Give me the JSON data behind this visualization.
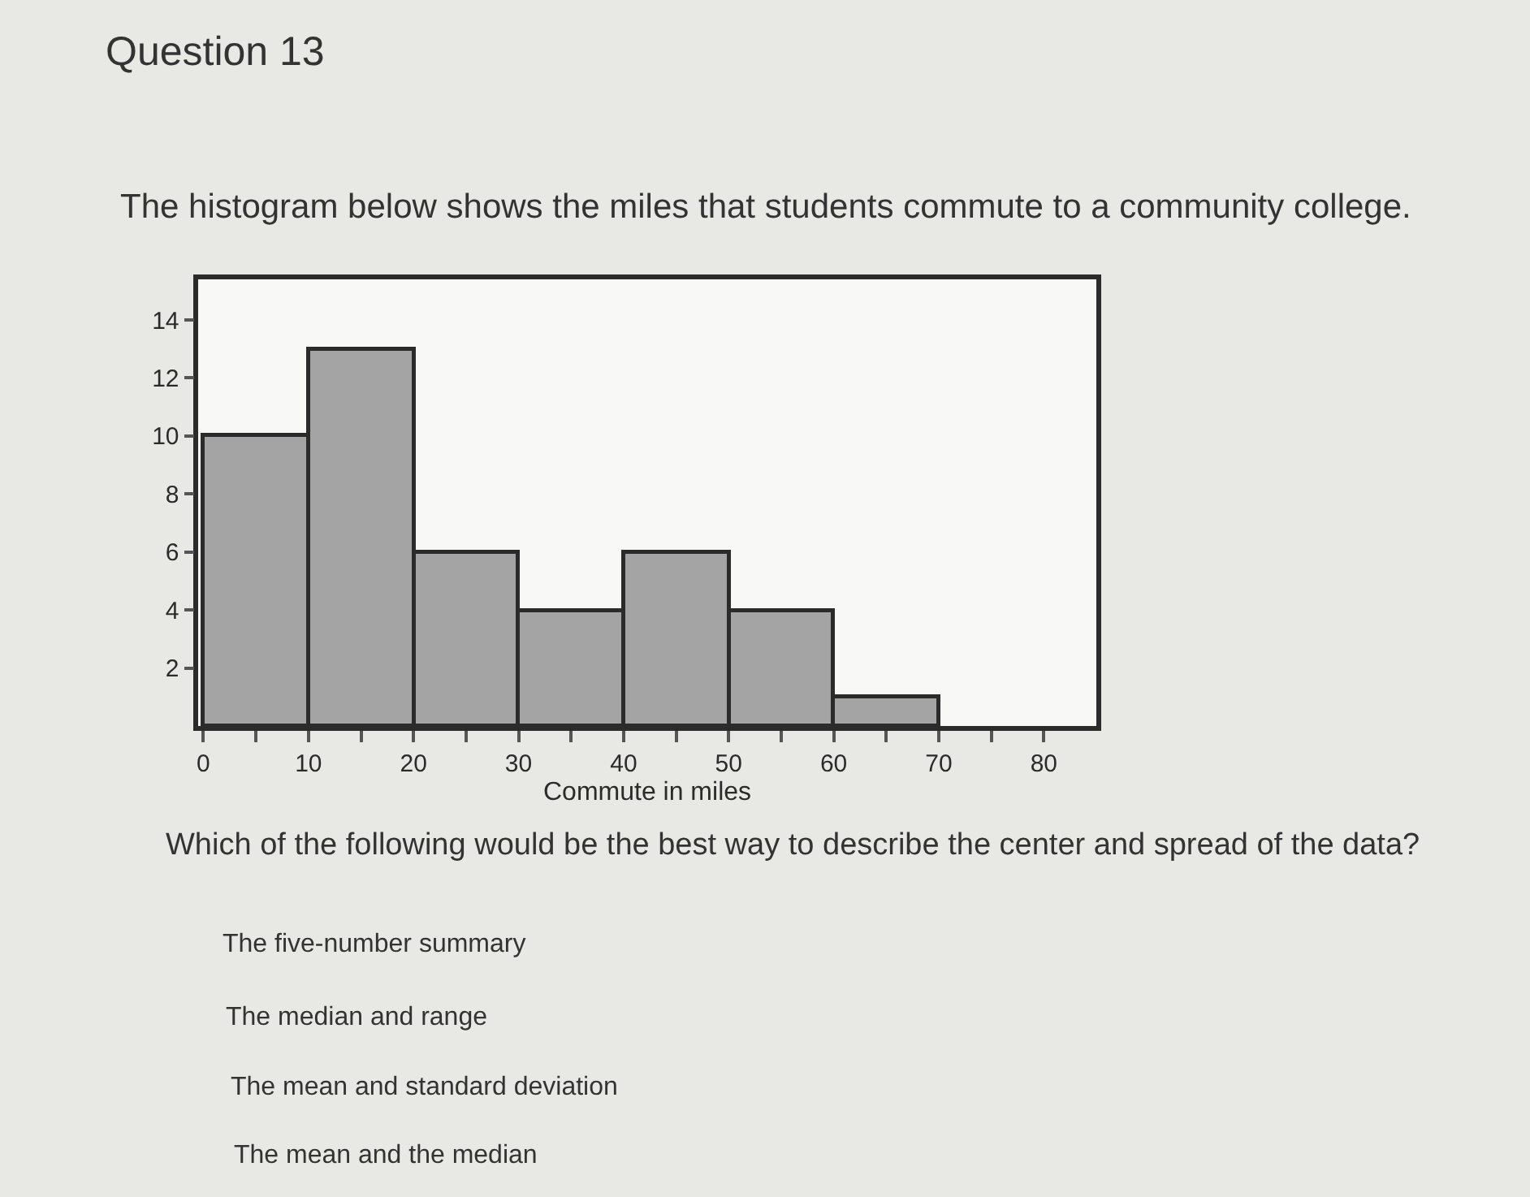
{
  "chart_data": {
    "type": "histogram",
    "title": "Question 13",
    "subtitle": "The histogram below shows the miles that students commute to a community college.",
    "xlabel": "Commute in miles",
    "bins": [
      0,
      10,
      20,
      30,
      40,
      50,
      60,
      70
    ],
    "values": [
      10,
      13,
      6,
      4,
      6,
      4,
      1
    ],
    "color": "#a4a4a4",
    "xlim": [
      -0.5,
      85
    ],
    "ylim": [
      0,
      15.4
    ],
    "xticks": [
      0,
      {
        "value": 5,
        "label": null
      },
      10,
      {
        "value": 15,
        "label": null
      },
      20,
      {
        "value": 25,
        "label": null
      },
      30,
      {
        "value": 35,
        "label": null
      },
      40,
      {
        "value": 45,
        "label": null
      },
      50,
      {
        "value": 55,
        "label": null
      },
      60,
      {
        "value": 65,
        "label": null
      },
      70,
      {
        "value": 75,
        "label": null
      },
      80
    ],
    "yticks": [
      2,
      4,
      6,
      8,
      10,
      12,
      14
    ],
    "grid": false,
    "annotations": [
      "Which of the following would be the best way to describe the center and spread of the data?",
      "The five-number summary",
      "The median and range",
      "The mean and standard deviation",
      "The mean and the median"
    ]
  }
}
